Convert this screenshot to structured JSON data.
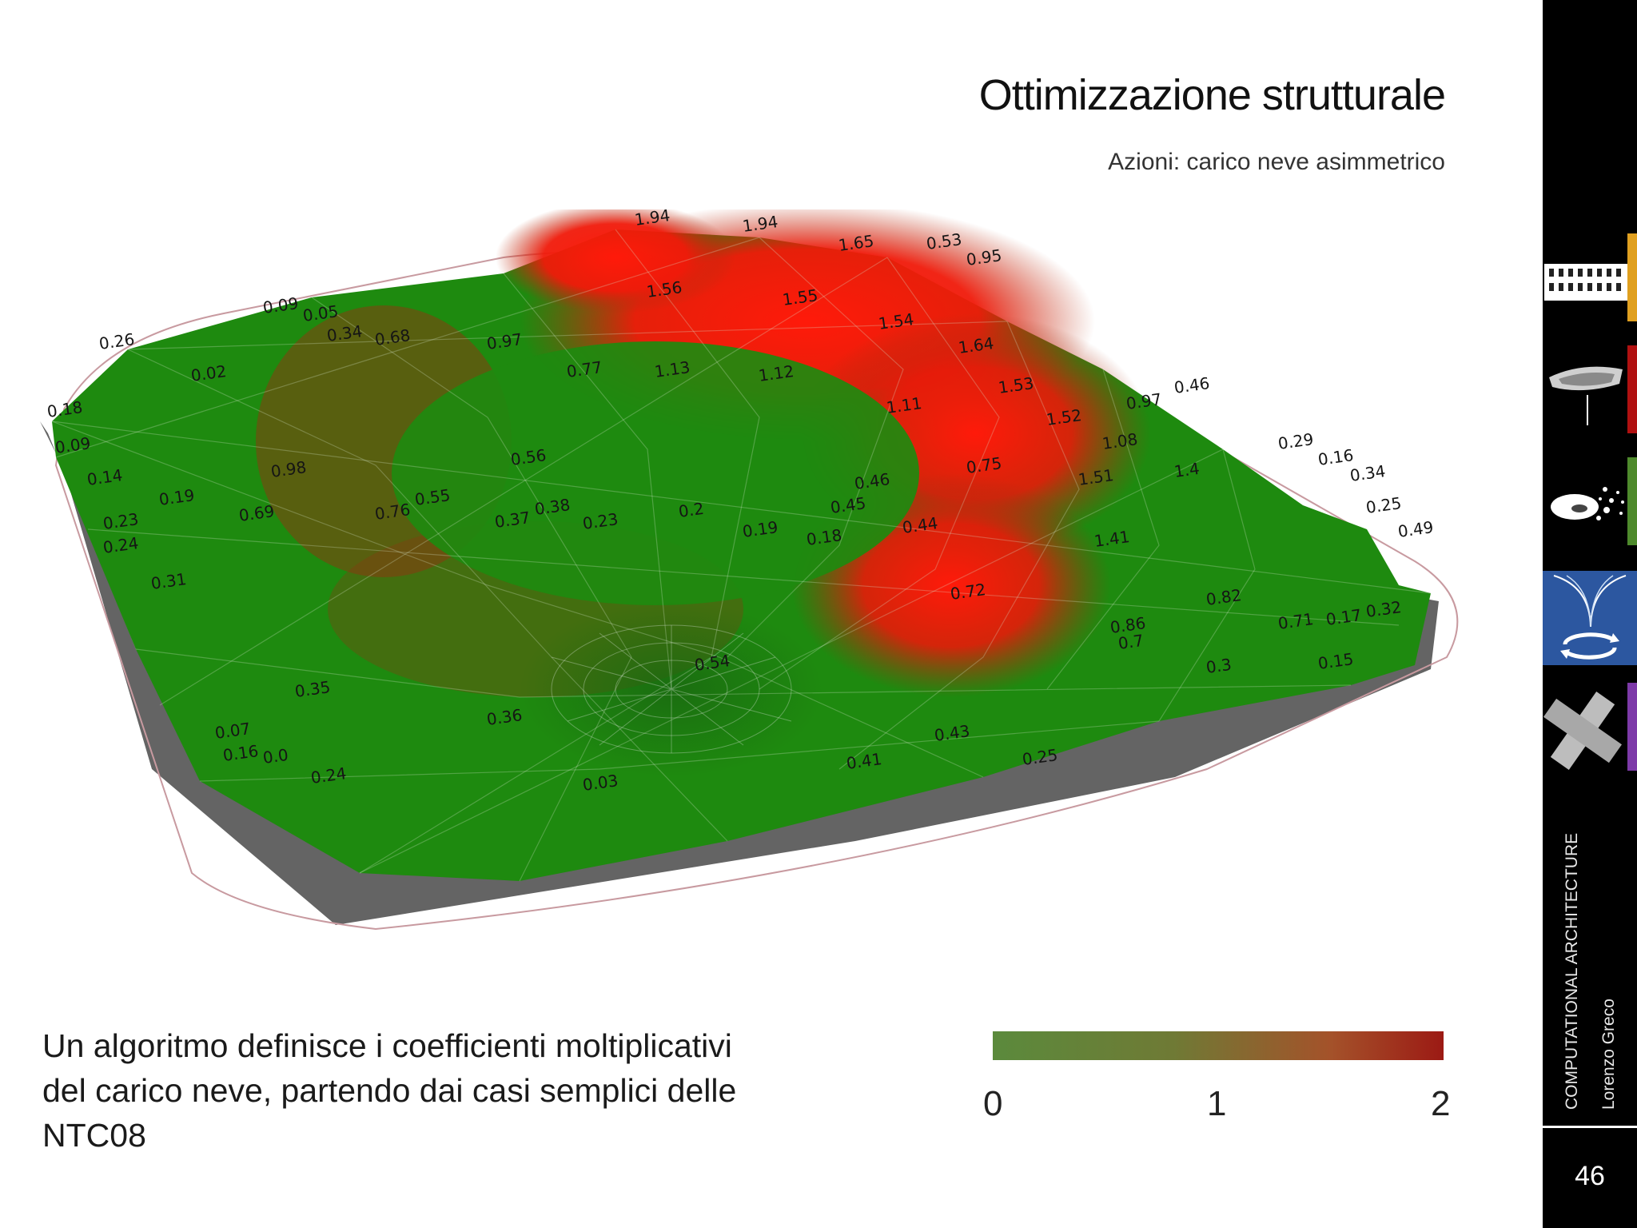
{
  "slide": {
    "title": "Ottimizzazione strutturale",
    "subtitle": "Azioni: carico neve asimmetrico",
    "caption": "Un algoritmo definisce i coefficienti moltiplicativi del carico neve, partendo dai casi semplici delle NTC08"
  },
  "legend": {
    "ticks": [
      "0",
      "1",
      "2"
    ],
    "low_color": "#5b8a3c",
    "high_color": "#9c1a14"
  },
  "figure": {
    "low_color": "#1e8a0f",
    "high_color": "#ff1a0a",
    "labels": [
      "1.94",
      "1.94",
      "1.65",
      "0.53",
      "0.95",
      "1.56",
      "1.55",
      "1.54",
      "1.64",
      "1.53",
      "1.52",
      "0.97",
      "0.46",
      "0.09",
      "0.05",
      "0.34",
      "0.68",
      "0.97",
      "0.77",
      "1.13",
      "1.12",
      "1.11",
      "1.08",
      "1.51",
      "1.4",
      "0.16",
      "0.34",
      "0.25",
      "0.49",
      "0.26",
      "0.02",
      "0.18",
      "0.09",
      "0.14",
      "0.19",
      "0.23",
      "0.24",
      "0.31",
      "0.69",
      "0.98",
      "0.76",
      "0.55",
      "0.37",
      "0.38",
      "0.23",
      "0.2",
      "0.19",
      "0.18",
      "0.44",
      "0.45",
      "0.46",
      "0.56",
      "0.75",
      "0.71",
      "0.82",
      "0.86",
      "0.7",
      "0.3",
      "0.15",
      "0.17",
      "0.32",
      "0.35",
      "0.07",
      "0.16",
      "0.0",
      "0.24",
      "0.03",
      "0.36",
      "0.41",
      "0.43",
      "0.25",
      "0.54",
      "1.41",
      "0.72",
      "0.29"
    ]
  },
  "sidebar": {
    "program": "COMPUTATIONAL ARCHITECTURE",
    "author": "Lorenzo Greco",
    "page_number": "46",
    "thumbs": [
      {
        "icon": "building-facade-icon",
        "accent": "#e0a020"
      },
      {
        "icon": "shell-surface-icon",
        "accent": "#b01010"
      },
      {
        "icon": "particles-cloud-icon",
        "accent": "#4e8a2c"
      },
      {
        "icon": "column-rotation-icon",
        "accent": "#2c57a0"
      },
      {
        "icon": "cross-node-icon",
        "accent": "#7d3aa8"
      }
    ]
  }
}
